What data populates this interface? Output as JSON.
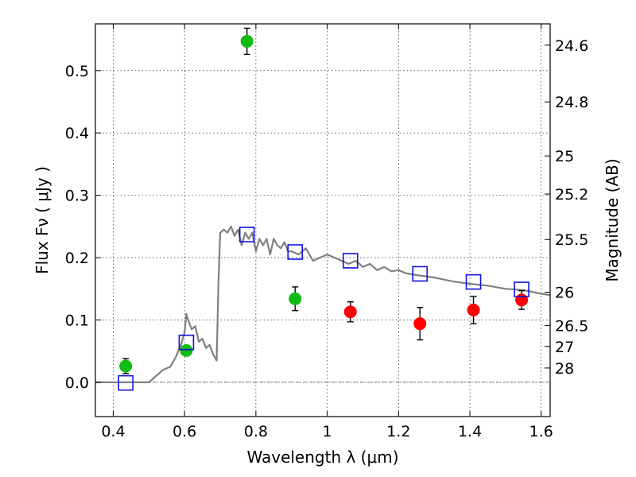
{
  "chart_data": {
    "type": "scatter",
    "xlabel": "Wavelength  λ (μm)",
    "ylabel": "Flux  Fν  ( μJy )",
    "ylabel_right": "Magnitude (AB)",
    "xlim": [
      0.35,
      1.625
    ],
    "ylim": [
      -0.055,
      0.575
    ],
    "x_ticks": [
      0.4,
      0.6,
      0.8,
      1.0,
      1.2,
      1.4,
      1.6
    ],
    "x_tick_labels": [
      "0.4",
      "0.6",
      "0.8",
      "1",
      "1.2",
      "1.4",
      "1.6"
    ],
    "y_ticks": [
      0.0,
      0.1,
      0.2,
      0.3,
      0.4,
      0.5
    ],
    "y_tick_labels": [
      "0.0",
      "0.1",
      "0.2",
      "0.3",
      "0.4",
      "0.5"
    ],
    "right_ticks": [
      {
        "flux": 0.5408,
        "label": "24.6"
      },
      {
        "flux": 0.4498,
        "label": "24.8"
      },
      {
        "flux": 0.3631,
        "label": "25"
      },
      {
        "flux": 0.302,
        "label": "25.2"
      },
      {
        "flux": 0.2291,
        "label": "25.5"
      },
      {
        "flux": 0.1445,
        "label": "26"
      },
      {
        "flux": 0.0912,
        "label": "26.5"
      },
      {
        "flux": 0.0575,
        "label": "27"
      },
      {
        "flux": 0.0229,
        "label": "28"
      }
    ],
    "grid": true,
    "zero_line": true,
    "model_sed": {
      "color": "#808080",
      "x": [
        0.35,
        0.5,
        0.51,
        0.54,
        0.56,
        0.575,
        0.59,
        0.6,
        0.605,
        0.61,
        0.62,
        0.63,
        0.64,
        0.65,
        0.66,
        0.67,
        0.68,
        0.69,
        0.695,
        0.7,
        0.71,
        0.72,
        0.73,
        0.74,
        0.75,
        0.76,
        0.77,
        0.78,
        0.79,
        0.8,
        0.81,
        0.82,
        0.83,
        0.84,
        0.85,
        0.86,
        0.87,
        0.88,
        0.89,
        0.9,
        0.92,
        0.94,
        0.96,
        0.98,
        1.0,
        1.02,
        1.04,
        1.06,
        1.08,
        1.1,
        1.12,
        1.14,
        1.16,
        1.18,
        1.2,
        1.22,
        1.25,
        1.3,
        1.35,
        1.4,
        1.45,
        1.5,
        1.55,
        1.6,
        1.625
      ],
      "y": [
        0.0,
        0.0,
        0.005,
        0.02,
        0.025,
        0.04,
        0.06,
        0.08,
        0.11,
        0.1,
        0.085,
        0.09,
        0.065,
        0.07,
        0.055,
        0.06,
        0.045,
        0.035,
        0.16,
        0.24,
        0.245,
        0.24,
        0.25,
        0.235,
        0.245,
        0.22,
        0.24,
        0.23,
        0.24,
        0.21,
        0.23,
        0.22,
        0.23,
        0.205,
        0.23,
        0.22,
        0.215,
        0.225,
        0.21,
        0.21,
        0.205,
        0.215,
        0.195,
        0.2,
        0.205,
        0.2,
        0.195,
        0.19,
        0.195,
        0.185,
        0.19,
        0.18,
        0.185,
        0.178,
        0.18,
        0.175,
        0.172,
        0.168,
        0.162,
        0.158,
        0.155,
        0.15,
        0.148,
        0.142,
        0.14
      ]
    },
    "series": [
      {
        "marker": "filled-circle",
        "color": "#11bb11",
        "x": [
          0.435,
          0.605,
          0.775,
          0.91
        ],
        "y": [
          0.026,
          0.051,
          0.547,
          0.134
        ],
        "yerr": [
          0.012,
          0.006,
          0.021,
          0.019
        ]
      },
      {
        "marker": "filled-circle",
        "color": "#ff0000",
        "x": [
          1.065,
          1.26,
          1.41,
          1.545
        ],
        "y": [
          0.113,
          0.094,
          0.116,
          0.132
        ],
        "yerr": [
          0.016,
          0.026,
          0.022,
          0.015
        ]
      },
      {
        "marker": "open-square",
        "color": "#1111dd",
        "x": [
          0.435,
          0.605,
          0.775,
          0.91,
          1.065,
          1.26,
          1.41,
          1.545
        ],
        "y": [
          -0.001,
          0.064,
          0.237,
          0.209,
          0.195,
          0.174,
          0.161,
          0.149
        ]
      }
    ]
  }
}
